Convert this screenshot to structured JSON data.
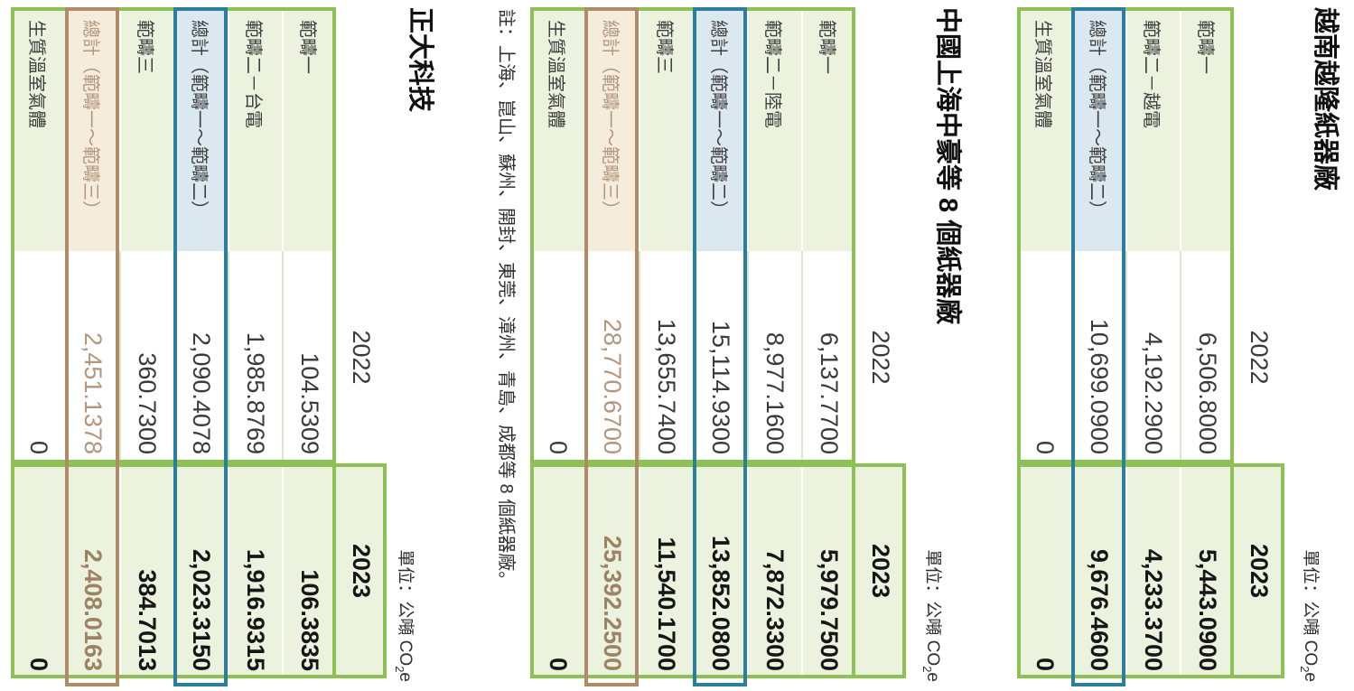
{
  "page": {
    "col_2022": "2022",
    "col_2023": "2023",
    "unit_prefix": "單位：公噸 CO",
    "unit_sub": "2",
    "unit_suffix": "e"
  },
  "colors": {
    "green_border": "#8dc153",
    "green_background": "#ebf2de",
    "blue_border": "#2b7e9d",
    "blue_background": "#dbe8f0",
    "brown_border": "#b18b68",
    "brown_background": "#f5ecdc",
    "brown_text": "#b2967e"
  },
  "tables": [
    {
      "title": "越南越隆紙器廠",
      "rows": [
        {
          "label": "範疇一",
          "y2022": "6,506.8000",
          "y2023": "5,443.0900"
        },
        {
          "label": "範疇二－越電",
          "y2022": "4,192.2900",
          "y2023": "4,233.3700"
        },
        {
          "label": "總計（範疇一～範疇二）",
          "y2022": "10,699.0900",
          "y2023": "9,676.4600"
        },
        {
          "label": "生質溫室氣體",
          "y2022": "0",
          "y2023": "0"
        }
      ]
    },
    {
      "title": "中國上海中豪等 8 個紙器廠",
      "note": "註：上海、崑山、蘇州、開封、東莞、漳州、青島、成都等 8 個紙器廠。",
      "rows": [
        {
          "label": "範疇一",
          "y2022": "6,137.7700",
          "y2023": "5,979.7500"
        },
        {
          "label": "範疇二－陸電",
          "y2022": "8,977.1600",
          "y2023": "7,872.3300"
        },
        {
          "label": "總計（範疇一～範疇二）",
          "y2022": "15,114.9300",
          "y2023": "13,852.0800"
        },
        {
          "label": "範疇三",
          "y2022": "13,655.7400",
          "y2023": "11,540.1700"
        },
        {
          "label": "總計（範疇一～範疇三）",
          "y2022": "28,770.6700",
          "y2023": "25,392.2500"
        },
        {
          "label": "生質溫室氣體",
          "y2022": "0",
          "y2023": "0"
        }
      ]
    },
    {
      "title": "正大科技",
      "rows": [
        {
          "label": "範疇一",
          "y2022": "104.5309",
          "y2023": "106.3835"
        },
        {
          "label": "範疇二－台電",
          "y2022": "1,985.8769",
          "y2023": "1,916.9315"
        },
        {
          "label": "總計（範疇一～範疇二）",
          "y2022": "2,090.4078",
          "y2023": "2,023.3150"
        },
        {
          "label": "範疇三",
          "y2022": "360.7300",
          "y2023": "384.7013"
        },
        {
          "label": "總計（範疇一～範疇三）",
          "y2022": "2,451.1378",
          "y2023": "2,408.0163"
        },
        {
          "label": "生質溫室氣體",
          "y2022": "0",
          "y2023": "0"
        }
      ]
    }
  ]
}
